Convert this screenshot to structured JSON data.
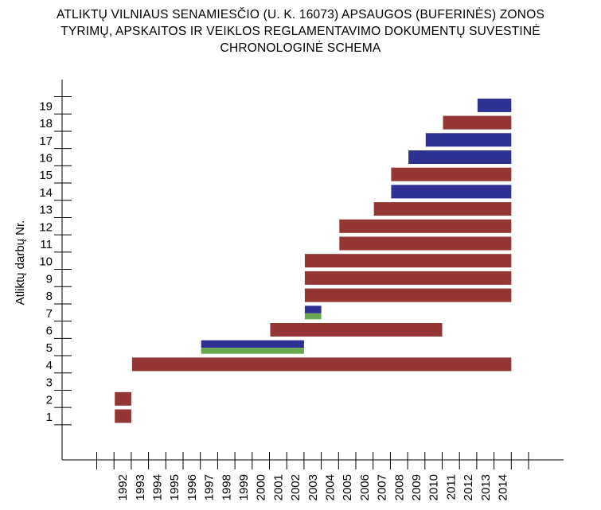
{
  "title_lines": [
    "ATLIKTŲ VILNIAUS SENAMIESČIO (U. K. 16073) APSAUGOS (BUFERINĖS) ZONOS",
    "TYRIMŲ, APSKAITOS IR VEIKLOS REGLAMENTAVIMO DOKUMENTŲ SUVESTINĖ",
    "CHRONOLOGINĖ SCHEMA"
  ],
  "chart_data": {
    "type": "bar",
    "orientation": "horizontal-gantt",
    "ylabel": "Atliktų darbų Nr.",
    "xlabel": "",
    "x_ticks": [
      "1992",
      "1993",
      "1994",
      "1995",
      "1996",
      "1997",
      "1998",
      "1999",
      "2000",
      "2001",
      "2002",
      "2003",
      "2004",
      "2005",
      "2006",
      "2007",
      "2008",
      "2009",
      "2010",
      "2011",
      "2012",
      "2013",
      "2014"
    ],
    "y_ticks": [
      "1",
      "2",
      "3",
      "4",
      "5",
      "6",
      "7",
      "8",
      "9",
      "10",
      "11",
      "12",
      "13",
      "14",
      "15",
      "16",
      "17",
      "18",
      "19"
    ],
    "xlim": [
      1990,
      2016
    ],
    "ylim": [
      0,
      20
    ],
    "colors": {
      "red": "#943634",
      "blue": "#2e3192",
      "green": "#6aa84f"
    },
    "bars": [
      {
        "row": 1,
        "start": 1992,
        "end": 1993,
        "color": "red"
      },
      {
        "row": 2,
        "start": 1992,
        "end": 1993,
        "color": "red"
      },
      {
        "row": 4,
        "start": 1993,
        "end": 2015,
        "color": "red"
      },
      {
        "row": 5,
        "start": 1997,
        "end": 2003,
        "color": "blue"
      },
      {
        "row": 5,
        "start": 1997,
        "end": 2003,
        "color": "green",
        "lower": true
      },
      {
        "row": 6,
        "start": 2001,
        "end": 2011,
        "color": "red"
      },
      {
        "row": 7,
        "start": 2003,
        "end": 2004,
        "color": "blue"
      },
      {
        "row": 7,
        "start": 2003,
        "end": 2004,
        "color": "green",
        "lower": true
      },
      {
        "row": 8,
        "start": 2003,
        "end": 2015,
        "color": "red"
      },
      {
        "row": 9,
        "start": 2003,
        "end": 2015,
        "color": "red"
      },
      {
        "row": 10,
        "start": 2003,
        "end": 2015,
        "color": "red"
      },
      {
        "row": 11,
        "start": 2005,
        "end": 2015,
        "color": "red"
      },
      {
        "row": 12,
        "start": 2005,
        "end": 2015,
        "color": "red"
      },
      {
        "row": 13,
        "start": 2007,
        "end": 2015,
        "color": "red"
      },
      {
        "row": 14,
        "start": 2008,
        "end": 2015,
        "color": "blue"
      },
      {
        "row": 15,
        "start": 2008,
        "end": 2015,
        "color": "red"
      },
      {
        "row": 16,
        "start": 2009,
        "end": 2015,
        "color": "blue"
      },
      {
        "row": 17,
        "start": 2010,
        "end": 2015,
        "color": "blue"
      },
      {
        "row": 18,
        "start": 2011,
        "end": 2015,
        "color": "red"
      },
      {
        "row": 19,
        "start": 2013,
        "end": 2015,
        "color": "blue"
      }
    ],
    "grid": false,
    "legend": "none"
  }
}
